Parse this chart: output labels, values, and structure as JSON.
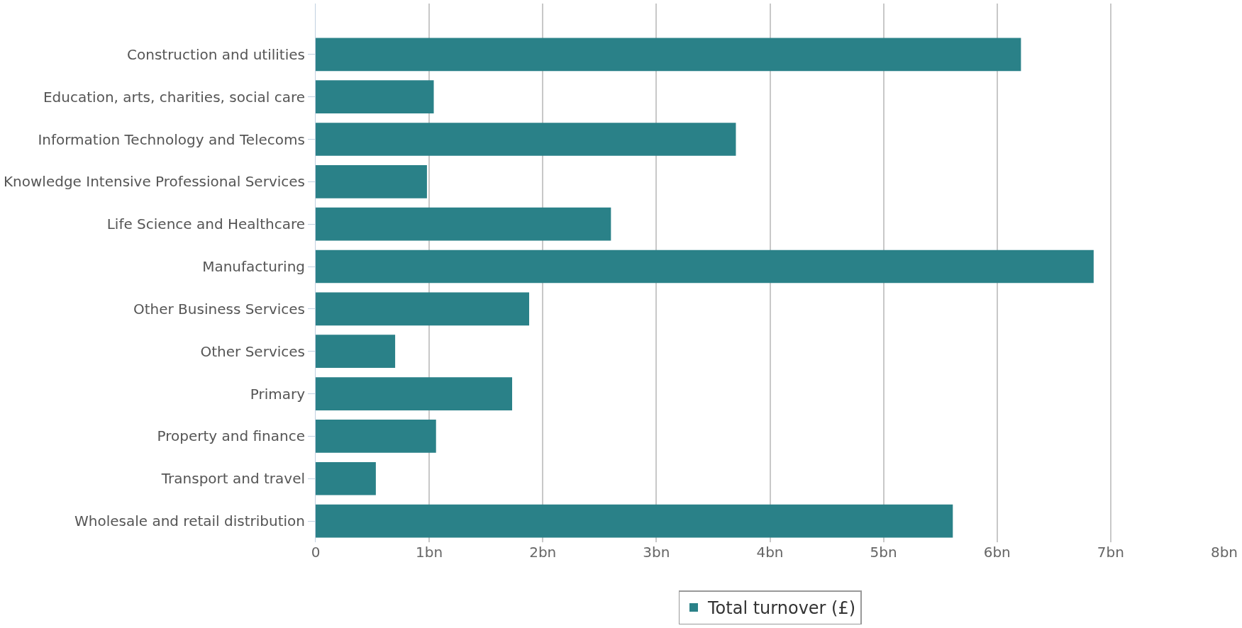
{
  "chart_data": {
    "type": "bar",
    "orientation": "horizontal",
    "categories": [
      "Construction and utilities",
      "Education, arts, charities, social care",
      "Information Technology and Telecoms",
      "Knowledge Intensive Professional Services",
      "Life Science and Healthcare",
      "Manufacturing",
      "Other Business Services",
      "Other Services",
      "Primary",
      "Property and finance",
      "Transport and travel",
      "Wholesale and retail distribution"
    ],
    "series": [
      {
        "name": "Total turnover (£)",
        "color": "#2a8188",
        "values": [
          6.21,
          1.04,
          3.7,
          0.98,
          2.6,
          6.85,
          1.88,
          0.7,
          1.73,
          1.06,
          0.53,
          5.61
        ]
      }
    ],
    "xlim": [
      0,
      8
    ],
    "xticks": [
      0,
      {
        "value": 1,
        "label": "1bn"
      },
      {
        "value": 2,
        "label": "2bn"
      },
      {
        "value": 3,
        "label": "3bn"
      },
      {
        "value": 4,
        "label": "4bn"
      },
      {
        "value": 5,
        "label": "5bn"
      },
      {
        "value": 6,
        "label": "6bn"
      },
      {
        "value": 7,
        "label": "7bn"
      },
      {
        "value": 8,
        "label": "8bn"
      }
    ],
    "grid": "x",
    "legend": "bottom"
  }
}
